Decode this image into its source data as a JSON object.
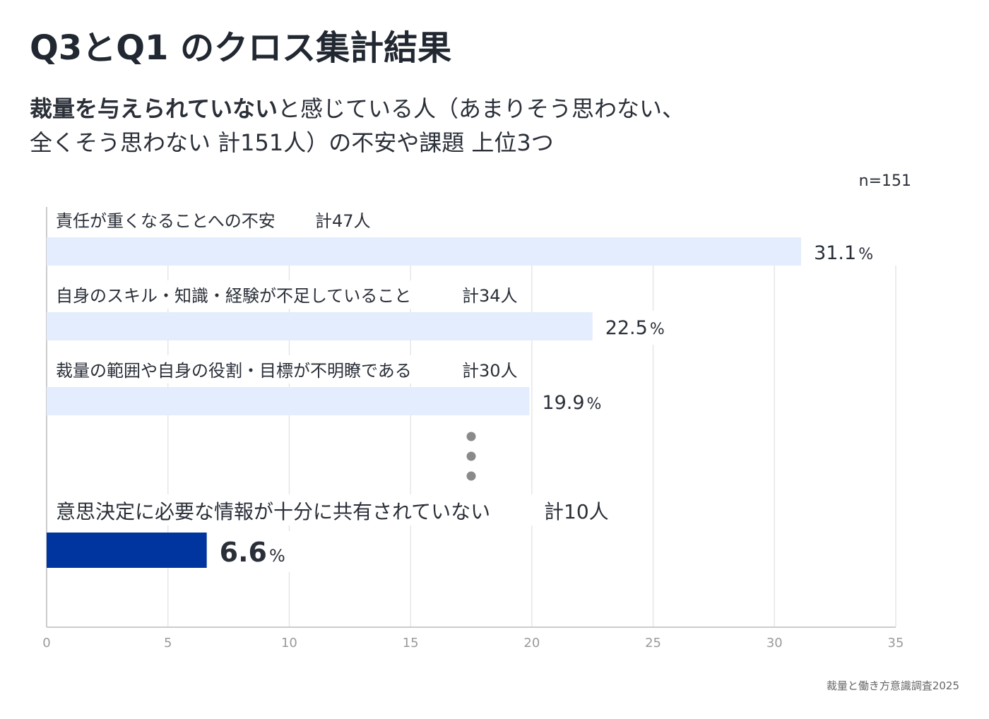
{
  "title": "Q3とQ1 のクロス集計結果",
  "subtitle": {
    "bold_part": "裁量を与えられていない",
    "rest_line1": "と感じている人（あまりそう思わない、",
    "line2": "全くそう思わない 計151人）の不安や課題 上位3つ"
  },
  "n_label": "n=151",
  "footer": "裁量と働き方意識調査2025",
  "colors": {
    "bar_light": "#e3edfd",
    "bar_highlight": "#00349e",
    "grid": "#e6e6e6",
    "axis": "#cccccc",
    "dots": "#8a8a8a"
  },
  "chart_data": {
    "type": "bar",
    "orientation": "horizontal",
    "title": "Q3とQ1 のクロス集計結果",
    "xlim": [
      0,
      35
    ],
    "xticks": [
      "0",
      "5",
      "10",
      "15",
      "20",
      "25",
      "30",
      "35"
    ],
    "xtick_values": [
      0,
      5,
      10,
      15,
      20,
      25,
      30,
      35
    ],
    "unit": "%",
    "grid": true,
    "ellipsis_between": "3 and 4",
    "categories": [
      "責任が重くなることへの不安",
      "自身のスキル・知識・経験が不足していること",
      "裁量の範囲や自身の役割・目標が不明瞭である",
      "意思決定に必要な情報が十分に共有されていない"
    ],
    "counts": [
      "計47人",
      "計34人",
      "計30人",
      "計10人"
    ],
    "values": [
      31.1,
      22.5,
      19.9,
      6.6
    ],
    "value_labels": [
      "31.1",
      "22.5",
      "19.9",
      "6.6"
    ],
    "highlight": [
      false,
      false,
      false,
      true
    ]
  }
}
